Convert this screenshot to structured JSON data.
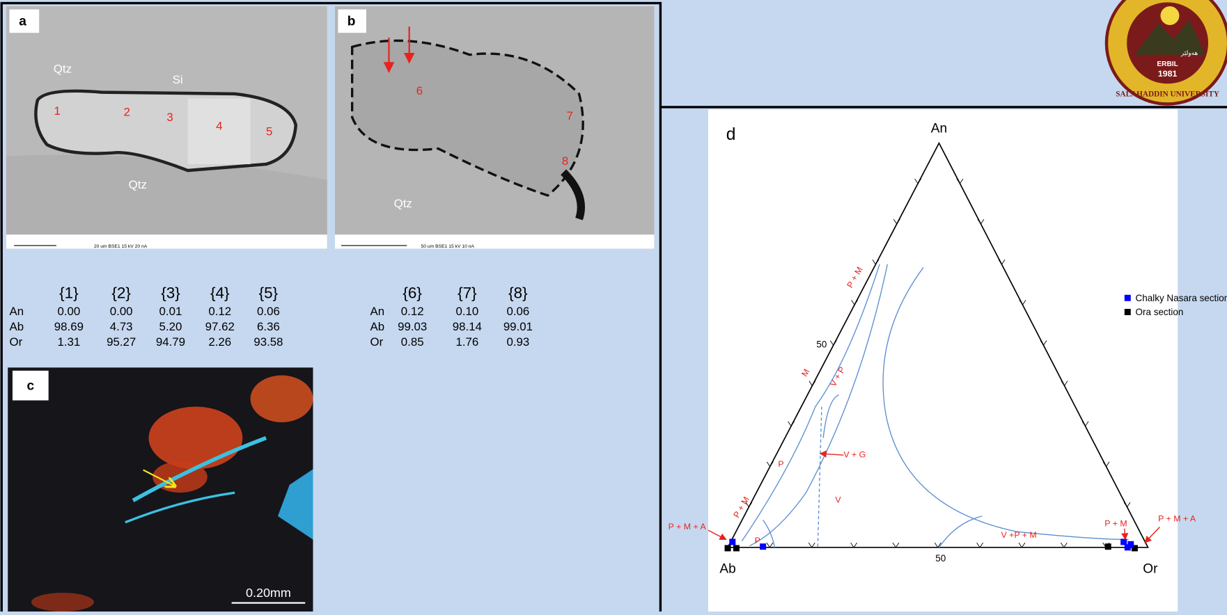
{
  "panels": {
    "a": "a",
    "b": "b",
    "c": "c",
    "d": "d"
  },
  "image_a": {
    "labels": [
      "Qtz",
      "Si",
      "Qtz"
    ],
    "points": [
      "1",
      "2",
      "3",
      "4",
      "5"
    ],
    "caption": "20 um   BSE1     15 kV  20 nA"
  },
  "image_b": {
    "labels": [
      "Qtz"
    ],
    "points": [
      "6",
      "7",
      "8"
    ],
    "caption": "50 um   BSE1     15 kV  10 nA"
  },
  "image_c": {
    "scale": "0.20mm"
  },
  "table_1": {
    "columns": [
      "{1}",
      "{2}",
      "{3}",
      "{4}",
      "{5}"
    ],
    "rows": [
      [
        "An",
        "0.00",
        "0.00",
        "0.01",
        "0.12",
        "0.06"
      ],
      [
        "Ab",
        "98.69",
        "4.73",
        "5.20",
        "97.62",
        "6.36"
      ],
      [
        "Or",
        "1.31",
        "95.27",
        "94.79",
        "2.26",
        "93.58"
      ]
    ]
  },
  "table_2": {
    "columns": [
      "{6}",
      "{7}",
      "{8}"
    ],
    "rows": [
      [
        "An",
        "0.12",
        "0.10",
        "0.06"
      ],
      [
        "Ab",
        "99.03",
        "98.14",
        "99.01"
      ],
      [
        "Or",
        "0.85",
        "1.76",
        "0.93"
      ]
    ]
  },
  "ternary": {
    "vertices": [
      "An",
      "Ab",
      "Or"
    ],
    "ticks": [
      "50",
      "50"
    ],
    "fields": [
      "P + M",
      "M",
      "V + P",
      "V + G",
      "P",
      "V",
      "P + M",
      "P + M + A",
      "P",
      "V +P + M",
      "P + M",
      "P + M + A"
    ],
    "legend": [
      {
        "name": "Chalky Nasara section",
        "color": "#0000ff"
      },
      {
        "name": "Ora section",
        "color": "#000000"
      }
    ]
  },
  "logo": {
    "city": "ERBIL",
    "city_local": "هەولێر",
    "university": "SALAHADDIN UNIVERSITY",
    "year": "1981"
  }
}
